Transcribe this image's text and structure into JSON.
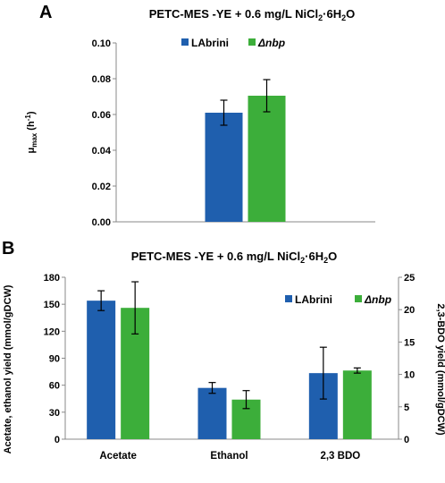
{
  "chart_data": [
    {
      "panel": "A",
      "type": "bar",
      "title": {
        "main": "PETC-MES -YE + 0.6 mg/L NiCl",
        "sub": "2",
        "rest": "·6H",
        "sub2": "2",
        "tail": "O"
      },
      "ylabel": {
        "main": "μ",
        "sub": "max",
        "rest": " (h",
        "sup": "-1",
        "tail": ")"
      },
      "ylim": [
        0,
        0.1
      ],
      "yticks": [
        "0.00",
        "0.02",
        "0.04",
        "0.06",
        "0.08",
        "0.10"
      ],
      "categories": [
        ""
      ],
      "series": [
        {
          "name": "LAbrini",
          "color": "#1f5fae",
          "values": [
            0.061
          ],
          "errors": [
            0.007
          ]
        },
        {
          "name": "Δnbp",
          "italic": true,
          "color": "#3cae3a",
          "values": [
            0.0705
          ],
          "errors": [
            0.009
          ]
        }
      ],
      "legend": "top-center",
      "grid": false
    },
    {
      "panel": "B",
      "type": "bar",
      "title": {
        "main": "PETC-MES -YE + 0.6 mg/L NiCl",
        "sub": "2",
        "rest": "·6H",
        "sub2": "2",
        "tail": "O"
      },
      "ylabel_left": "Acetate, ethanol yield (mmol/gDCW)",
      "ylabel_right": "2,3-BDO yield (mmol/gDCW)",
      "ylim_left": [
        0,
        180
      ],
      "yticks_left": [
        "0",
        "30",
        "60",
        "90",
        "120",
        "150",
        "180"
      ],
      "ylim_right": [
        0,
        25
      ],
      "yticks_right": [
        "0",
        "5",
        "10",
        "15",
        "20",
        "25"
      ],
      "categories": [
        "Acetate",
        "Ethanol",
        "2,3 BDO"
      ],
      "axis_per_category": [
        "left",
        "left",
        "right"
      ],
      "series": [
        {
          "name": "LAbrini",
          "color": "#1f5fae",
          "values": [
            154,
            57,
            10.2
          ],
          "errors": [
            11,
            6,
            4
          ]
        },
        {
          "name": "Δnbp",
          "italic": true,
          "color": "#3cae3a",
          "values": [
            146,
            44,
            10.6
          ],
          "errors": [
            29,
            10,
            0.4
          ]
        }
      ],
      "legend": "top-right",
      "grid": false
    }
  ]
}
